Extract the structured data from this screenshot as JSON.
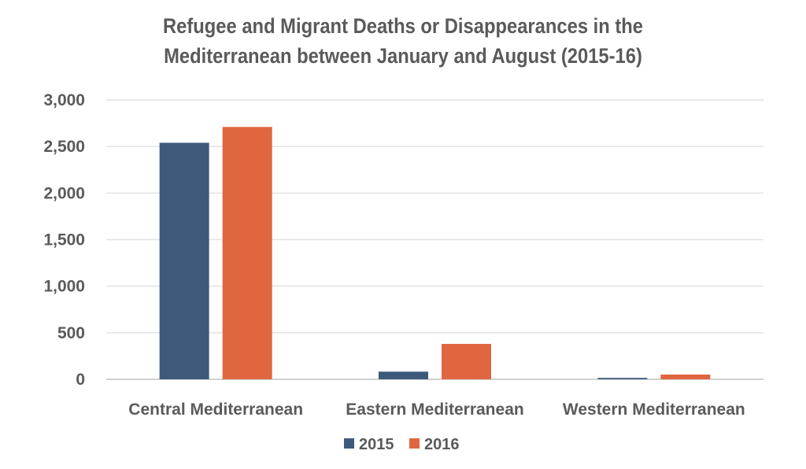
{
  "chart_data": {
    "type": "bar",
    "title_lines": [
      "Refugee and Migrant Deaths or Disappearances in the",
      "Mediterranean between January and August (2015-16)"
    ],
    "categories": [
      "Central Mediterranean",
      "Eastern Mediterranean",
      "Western Mediterranean"
    ],
    "series": [
      {
        "name": "2015",
        "color": "#3D5A7A",
        "values": [
          2540,
          82,
          15
        ]
      },
      {
        "name": "2016",
        "color": "#E0663F",
        "values": [
          2710,
          380,
          51
        ]
      }
    ],
    "ylim": [
      0,
      3000
    ],
    "yticks": [
      0,
      500,
      1000,
      1500,
      2000,
      2500,
      3000
    ],
    "ytick_labels": [
      "0",
      "500",
      "1,000",
      "1,500",
      "2,000",
      "2,500",
      "3,000"
    ],
    "grid": true,
    "legend_position": "bottom"
  }
}
